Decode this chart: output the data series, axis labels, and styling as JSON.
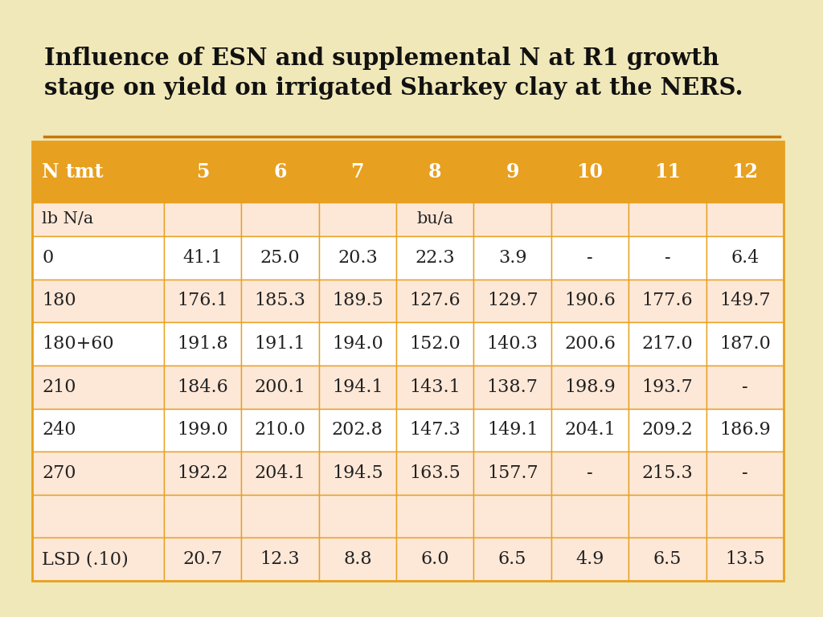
{
  "title": "Influence of ESN and supplemental N at R1 growth\nstage on yield on irrigated Sharkey clay at the NERS.",
  "background_color": "#f0e8b8",
  "header_bg_color": "#e8a020",
  "header_text_color": "#ffffff",
  "row_colors": [
    "#ffffff",
    "#fde8d8",
    "#ffffff",
    "#fde8d8",
    "#ffffff",
    "#fde8d8",
    "#ffffff",
    "#fde8d8",
    "#fde8d8"
  ],
  "border_color": "#e8a020",
  "text_color": "#222222",
  "headers": [
    "N tmt",
    "5",
    "6",
    "7",
    "8",
    "9",
    "10",
    "11",
    "12"
  ],
  "subheader": [
    "lb N/a",
    "",
    "",
    "",
    "bu/a",
    "",
    "",
    "",
    ""
  ],
  "rows": [
    [
      "0",
      "41.1",
      "25.0",
      "20.3",
      "22.3",
      "3.9",
      "-",
      "-",
      "6.4"
    ],
    [
      "180",
      "176.1",
      "185.3",
      "189.5",
      "127.6",
      "129.7",
      "190.6",
      "177.6",
      "149.7"
    ],
    [
      "180+60",
      "191.8",
      "191.1",
      "194.0",
      "152.0",
      "140.3",
      "200.6",
      "217.0",
      "187.0"
    ],
    [
      "210",
      "184.6",
      "200.1",
      "194.1",
      "143.1",
      "138.7",
      "198.9",
      "193.7",
      "-"
    ],
    [
      "240",
      "199.0",
      "210.0",
      "202.8",
      "147.3",
      "149.1",
      "204.1",
      "209.2",
      "186.9"
    ],
    [
      "270",
      "192.2",
      "204.1",
      "194.5",
      "163.5",
      "157.7",
      "-",
      "215.3",
      "-"
    ],
    [
      "",
      "",
      "",
      "",
      "",
      "",
      "",
      "",
      ""
    ],
    [
      "LSD (.10)",
      "20.7",
      "12.3",
      "8.8",
      "6.0",
      "6.5",
      "4.9",
      "6.5",
      "13.5"
    ]
  ],
  "col_widths": [
    1.7,
    1.0,
    1.0,
    1.0,
    1.0,
    1.0,
    1.0,
    1.0,
    1.0
  ],
  "title_fontsize": 21,
  "header_fontsize": 17,
  "cell_fontsize": 16,
  "subheader_fontsize": 15
}
